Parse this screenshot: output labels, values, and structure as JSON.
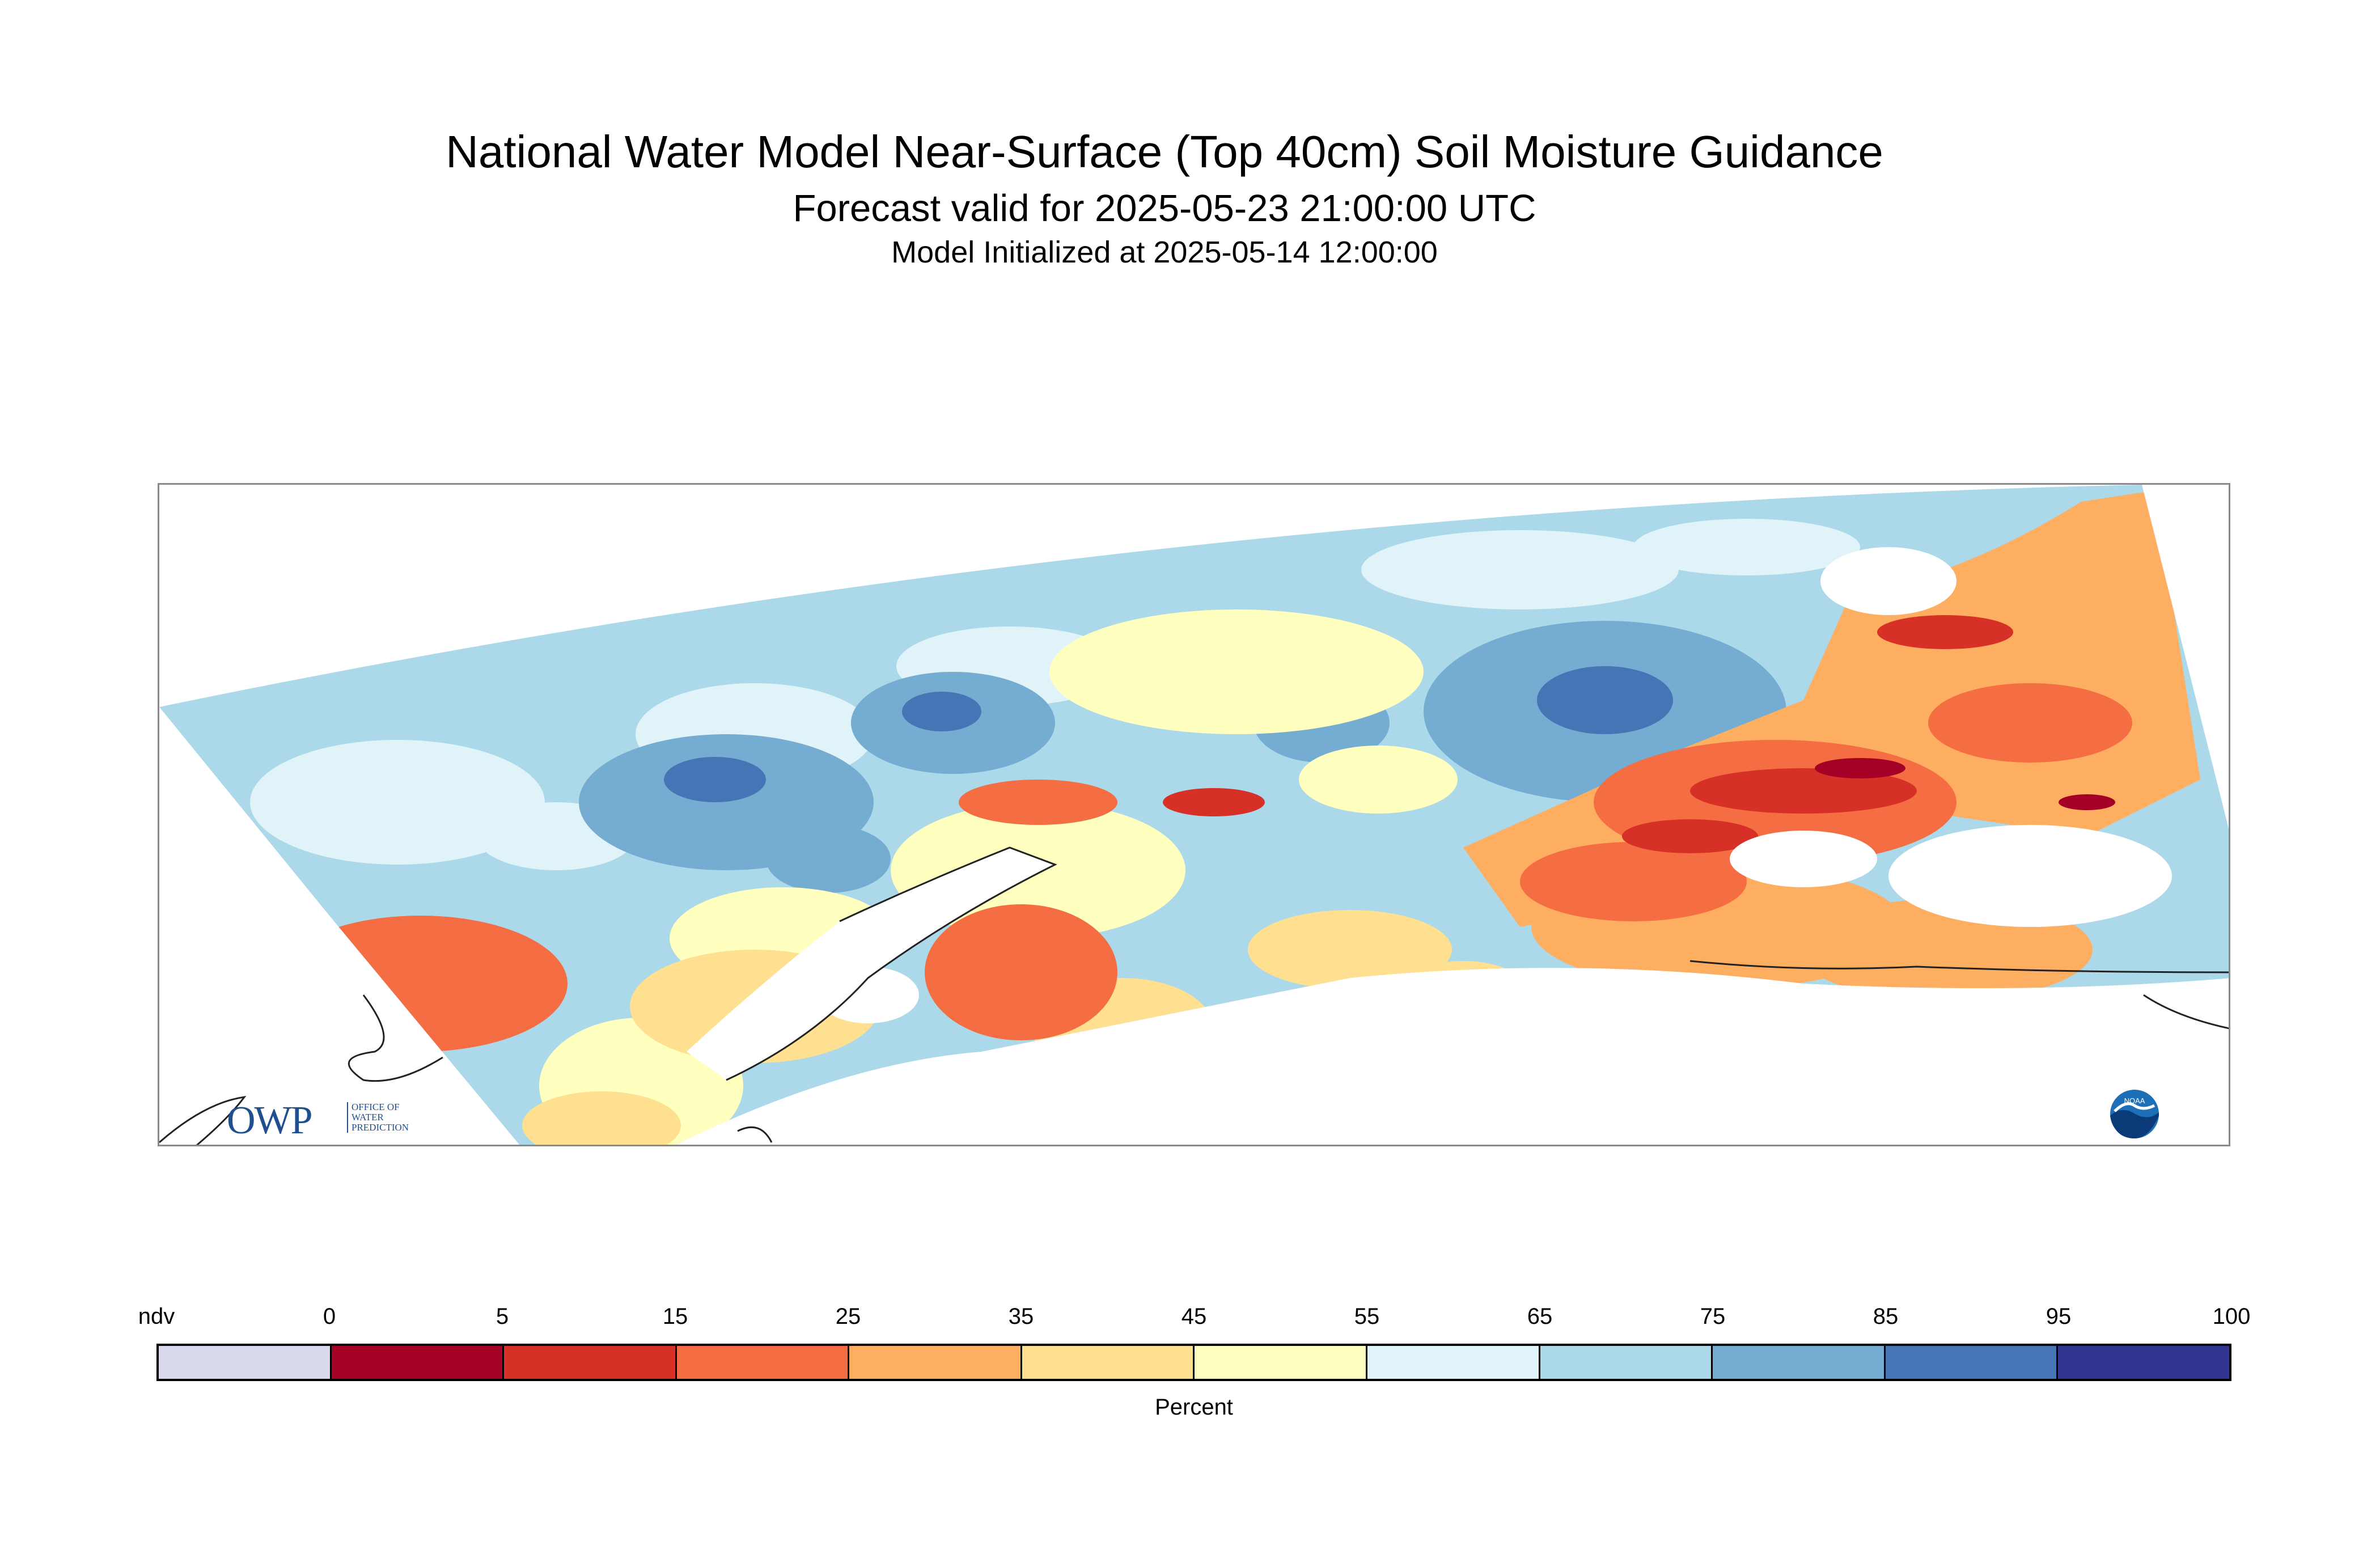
{
  "title": "National Water Model Near-Surface (Top 40cm) Soil Moisture Guidance",
  "subtitle": "Forecast valid for 2025-05-23 21:00:00 UTC",
  "init_line": "Model Initialized at 2025-05-14 12:00:00",
  "logos": {
    "owp_mark": "OWP",
    "owp_text": "OFFICE OF\nWATER\nPREDICTION",
    "noaa_text": "NOAA"
  },
  "legend": {
    "label": "Percent",
    "ticks": [
      "ndv",
      "0",
      "5",
      "15",
      "25",
      "35",
      "45",
      "55",
      "65",
      "75",
      "85",
      "95",
      "100"
    ],
    "colors": [
      "#d9d9ee",
      "#a50026",
      "#d73027",
      "#f46d43",
      "#fdae61",
      "#fee090",
      "#ffffbf",
      "#e0f3f8",
      "#abd9e9",
      "#74add1",
      "#4575b4",
      "#313695"
    ]
  },
  "map_colors": {
    "c0_5": "#a50026",
    "c5_15": "#d73027",
    "c15_25": "#f46d43",
    "c25_35": "#fdae61",
    "c35_45": "#fee090",
    "c45_55": "#ffffbf",
    "c55_65": "#e0f3f8",
    "c65_75": "#abd9e9",
    "c75_85": "#74add1",
    "c85_95": "#4575b4",
    "no_data": "#ffffff",
    "coastline": "#222222"
  }
}
